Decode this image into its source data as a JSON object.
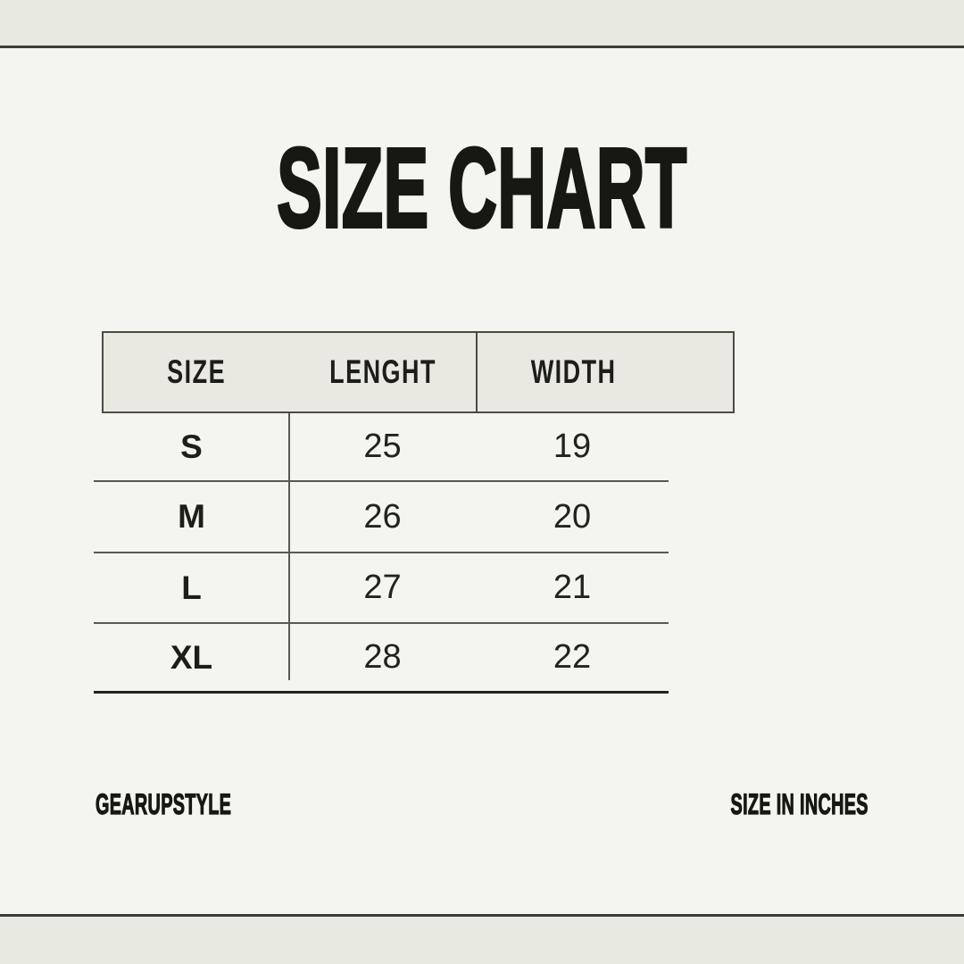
{
  "title": "SIZE CHART",
  "footer": {
    "brand": "GEARUPSTYLE",
    "unit_note": "SIZE IN INCHES"
  },
  "chart_data": {
    "type": "table",
    "title": "SIZE CHART",
    "columns": [
      "SIZE",
      "LENGHT",
      "WIDTH"
    ],
    "rows": [
      [
        "S",
        "25",
        "19"
      ],
      [
        "M",
        "26",
        "20"
      ],
      [
        "L",
        "27",
        "21"
      ],
      [
        "XL",
        "28",
        "22"
      ]
    ],
    "units": "inches",
    "footer_left": "GEARUPSTYLE",
    "footer_right": "SIZE IN INCHES"
  },
  "colors": {
    "page_background": "#f4f4f1",
    "band_background": "#e8e9e0",
    "header_fill": "#e9e9e1",
    "dark_rule": "#3c3c35",
    "table_rule": "#5a594f",
    "table_bottom_rule": "#23231d",
    "ink": "#171714"
  }
}
